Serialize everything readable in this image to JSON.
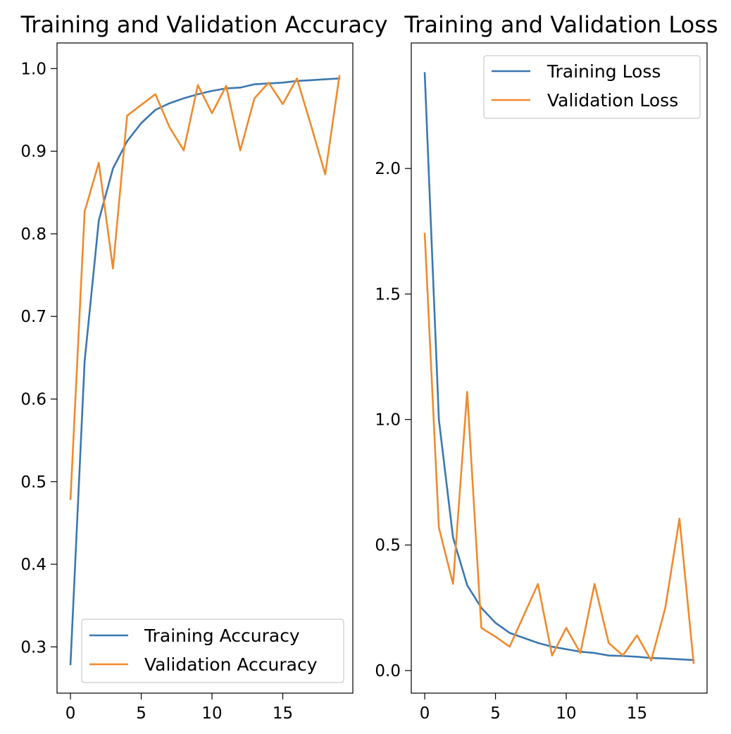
{
  "chart_data": [
    {
      "type": "line",
      "title": "Training and Validation Accuracy",
      "xlabel": "",
      "ylabel": "",
      "xlim": [
        -0.95,
        19.95
      ],
      "ylim": [
        0.244,
        1.031
      ],
      "xticks": [
        0,
        5,
        10,
        15
      ],
      "xtick_labels": [
        "0",
        "5",
        "10",
        "15"
      ],
      "yticks": [
        0.3,
        0.4,
        0.5,
        0.6,
        0.7,
        0.8,
        0.9,
        1.0
      ],
      "ytick_labels": [
        "0.3",
        "0.4",
        "0.5",
        "0.6",
        "0.7",
        "0.8",
        "0.9",
        "1.0"
      ],
      "legend_position": "lower-right",
      "x": [
        0,
        1,
        2,
        3,
        4,
        5,
        6,
        7,
        8,
        9,
        10,
        11,
        12,
        13,
        14,
        15,
        16,
        17,
        18,
        19
      ],
      "series": [
        {
          "name": "Training Accuracy",
          "color": "#3b77b0",
          "values": [
            0.279,
            0.646,
            0.816,
            0.879,
            0.912,
            0.934,
            0.95,
            0.958,
            0.964,
            0.969,
            0.973,
            0.976,
            0.977,
            0.981,
            0.982,
            0.983,
            0.985,
            0.986,
            0.987,
            0.988
          ]
        },
        {
          "name": "Validation Accuracy",
          "color": "#f08a2c",
          "values": [
            0.479,
            0.827,
            0.886,
            0.758,
            0.943,
            0.956,
            0.969,
            0.929,
            0.901,
            0.98,
            0.946,
            0.979,
            0.901,
            0.964,
            0.983,
            0.957,
            0.988,
            0.931,
            0.872,
            0.991
          ]
        }
      ]
    },
    {
      "type": "line",
      "title": "Training and Validation Loss",
      "xlabel": "",
      "ylabel": "",
      "xlim": [
        -0.95,
        19.95
      ],
      "ylim": [
        -0.09,
        2.5
      ],
      "xticks": [
        0,
        5,
        10,
        15
      ],
      "xtick_labels": [
        "0",
        "5",
        "10",
        "15"
      ],
      "yticks": [
        0.0,
        0.5,
        1.0,
        1.5,
        2.0
      ],
      "ytick_labels": [
        "0.0",
        "0.5",
        "1.0",
        "1.5",
        "2.0"
      ],
      "legend_position": "upper-right",
      "x": [
        0,
        1,
        2,
        3,
        4,
        5,
        6,
        7,
        8,
        9,
        10,
        11,
        12,
        13,
        14,
        15,
        16,
        17,
        18,
        19
      ],
      "series": [
        {
          "name": "Training Loss",
          "color": "#3b77b0",
          "values": [
            2.38,
            1.0,
            0.53,
            0.34,
            0.25,
            0.19,
            0.15,
            0.13,
            0.11,
            0.095,
            0.085,
            0.075,
            0.07,
            0.06,
            0.058,
            0.055,
            0.05,
            0.048,
            0.045,
            0.042
          ]
        },
        {
          "name": "Validation Loss",
          "color": "#f08a2c",
          "values": [
            1.74,
            0.57,
            0.345,
            1.11,
            0.17,
            0.135,
            0.095,
            0.22,
            0.345,
            0.06,
            0.17,
            0.07,
            0.345,
            0.11,
            0.06,
            0.14,
            0.04,
            0.25,
            0.605,
            0.03
          ]
        }
      ]
    }
  ]
}
